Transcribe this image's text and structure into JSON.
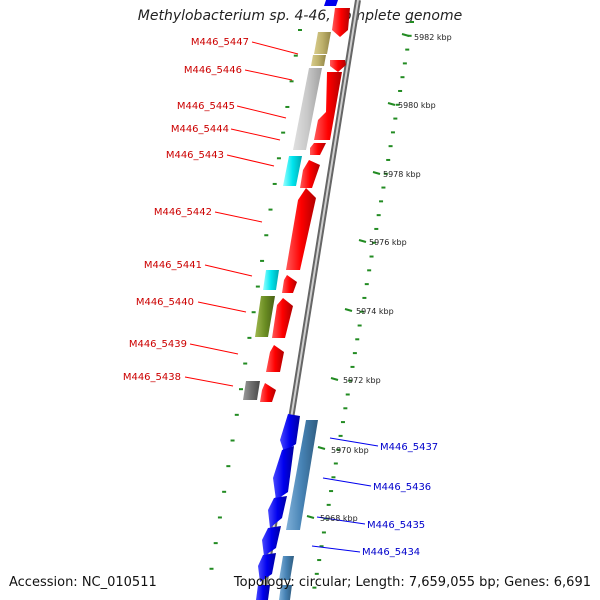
{
  "title": "Methylobacterium sp. 4-46, complete genome",
  "footer": {
    "accession": "Accession: NC_010511",
    "summary": "Topology: circular; Length: 7,659,055 bp; Genes: 6,691"
  },
  "colors": {
    "forward_feature": "#ff0000",
    "reverse_feature": "#0000ee",
    "reverse_rna": "#4682b4",
    "tick": "#228b22",
    "backbone": "#888888",
    "label_forward": "#cc0000",
    "label_reverse": "#0000cc"
  },
  "scale_labels": [
    "5982 kbp",
    "5980 kbp",
    "5978 kbp",
    "5976 kbp",
    "5974 kbp",
    "5972 kbp",
    "5970 kbp",
    "5968 kbp"
  ],
  "gene_labels_forward": [
    "M446_5447",
    "M446_5446",
    "M446_5445",
    "M446_5444",
    "M446_5443",
    "M446_5442",
    "M446_5441",
    "M446_5440",
    "M446_5439",
    "M446_5438"
  ],
  "gene_labels_reverse": [
    "M446_5437",
    "M446_5436",
    "M446_5435",
    "M446_5434"
  ]
}
